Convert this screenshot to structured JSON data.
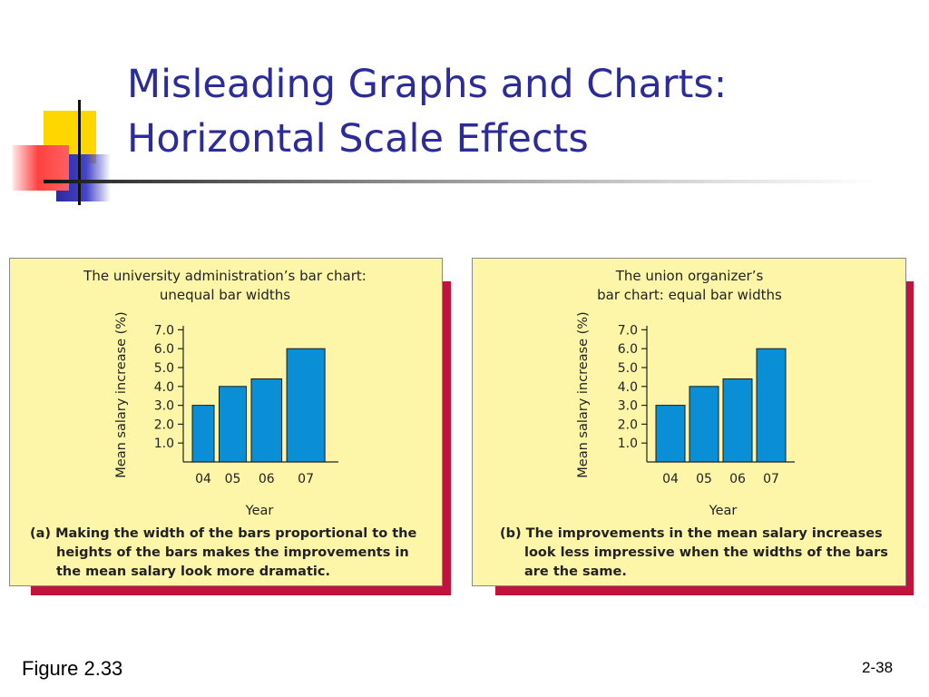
{
  "slide": {
    "title_line1": "Misleading Graphs and Charts:",
    "title_line2": "Horizontal Scale Effects",
    "figure_label": "Figure 2.33",
    "page_number": "2-38"
  },
  "colors": {
    "title": "#2b2b9a",
    "panel_background": "#fdf6a8",
    "panel_shadow": "#c0143c",
    "bar_fill": "#0a8fd6",
    "deco_yellow": "#ffd700",
    "deco_blue": "#3a3ab8",
    "deco_red": "#ff4040"
  },
  "chart_data": [
    {
      "type": "bar",
      "title_lines": [
        "The university administration’s bar chart:",
        "unequal bar widths"
      ],
      "ylabel": "Mean salary increase (%)",
      "xlabel": "Year",
      "categories": [
        "04",
        "05",
        "06",
        "07"
      ],
      "values": [
        3.0,
        4.0,
        4.4,
        6.0
      ],
      "relative_widths": [
        1.0,
        1.25,
        1.4,
        1.75
      ],
      "yticks": [
        "1.0",
        "2.0",
        "3.0",
        "4.0",
        "5.0",
        "6.0",
        "7.0"
      ],
      "ylim": [
        0,
        7
      ],
      "caption_lines": [
        "(a) Making the width of the bars proportional to the",
        "heights of the bars makes the improvements in",
        "the mean salary look more dramatic."
      ]
    },
    {
      "type": "bar",
      "title_lines": [
        "The union organizer’s",
        "bar chart: equal bar widths"
      ],
      "ylabel": "Mean salary increase (%)",
      "xlabel": "Year",
      "categories": [
        "04",
        "05",
        "06",
        "07"
      ],
      "values": [
        3.0,
        4.0,
        4.4,
        6.0
      ],
      "relative_widths": [
        1.0,
        1.0,
        1.0,
        1.0
      ],
      "yticks": [
        "1.0",
        "2.0",
        "3.0",
        "4.0",
        "5.0",
        "6.0",
        "7.0"
      ],
      "ylim": [
        0,
        7
      ],
      "caption_lines": [
        "(b) The improvements in the mean salary increases",
        "look less impressive when the widths of the bars",
        "are the same."
      ]
    }
  ]
}
